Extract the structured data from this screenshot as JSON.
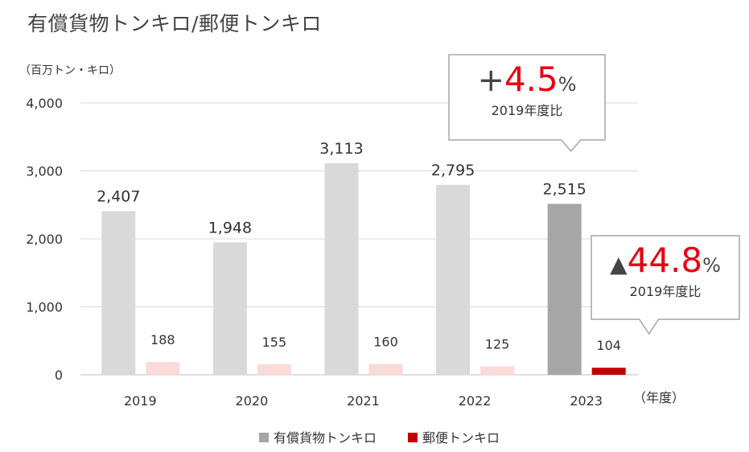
{
  "title": "有償貨物トンキロ/郵便トンキロ",
  "chart_data": {
    "type": "bar",
    "title": "有償貨物トンキロ/郵便トンキロ",
    "ylabel": "（百万トン・キロ）",
    "xlabel": "（年度）",
    "ylim": [
      0,
      4000
    ],
    "yticks": [
      0,
      1000,
      2000,
      3000,
      4000
    ],
    "ytick_labels": [
      "0",
      "1,000",
      "2,000",
      "3,000",
      "4,000"
    ],
    "grid": true,
    "legend_position": "bottom",
    "categories": [
      "2019",
      "2020",
      "2021",
      "2022",
      "2023"
    ],
    "series": [
      {
        "name": "有償貨物トンキロ",
        "values": [
          2407,
          1948,
          3113,
          2795,
          2515
        ],
        "labels": [
          "2,407",
          "1,948",
          "3,113",
          "2,795",
          "2,515"
        ],
        "color": "#d9d9d9",
        "highlight_color": "#a6a6a6",
        "legend_color": "#a6a6a6"
      },
      {
        "name": "郵便トンキロ",
        "values": [
          188,
          155,
          160,
          125,
          104
        ],
        "labels": [
          "188",
          "155",
          "160",
          "125",
          "104"
        ],
        "color": "#fadbd8",
        "highlight_color": "#c00000",
        "legend_color": "#c00000"
      }
    ],
    "highlight_category": "2023",
    "callouts": [
      {
        "prefix": "+",
        "value": "4.5",
        "unit": "%",
        "sub": "2019年度比"
      },
      {
        "prefix": "▲",
        "value": "44.8",
        "unit": "%",
        "sub": "2019年度比"
      }
    ]
  }
}
